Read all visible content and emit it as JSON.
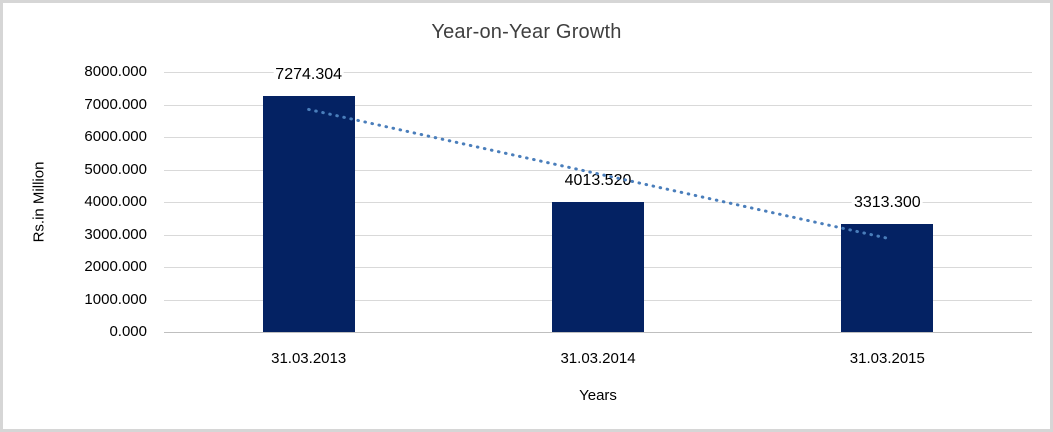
{
  "frame": {
    "background": "#ffffff",
    "border_color": "#d6d6d6"
  },
  "chart_data": {
    "type": "bar",
    "title": "Year-on-Year Growth",
    "xlabel": "Years",
    "ylabel": "Rs.in Million",
    "categories": [
      "31.03.2013",
      "31.03.2014",
      "31.03.2015"
    ],
    "values": [
      7274.304,
      4013.52,
      3313.3
    ],
    "data_labels": [
      "7274.304",
      "4013.520",
      "3313.300"
    ],
    "ylim": [
      0,
      8000
    ],
    "ytick_interval": 1000,
    "ytick_labels": [
      "0.000",
      "1000.000",
      "2000.000",
      "3000.000",
      "4000.000",
      "5000.000",
      "6000.000",
      "7000.000",
      "8000.000"
    ],
    "grid": "horizontal",
    "legend": "none",
    "bar_color": "#042263",
    "gridline_color": "#d9d9d9",
    "axis_line_color": "#bfbfbf",
    "title_color": "#3f3f3f",
    "text_color": "#000000",
    "trendline": {
      "type": "linear",
      "style": "dotted",
      "color": "#4a7ebb",
      "endpoint_values": [
        6847.5,
        2886.5
      ]
    }
  }
}
